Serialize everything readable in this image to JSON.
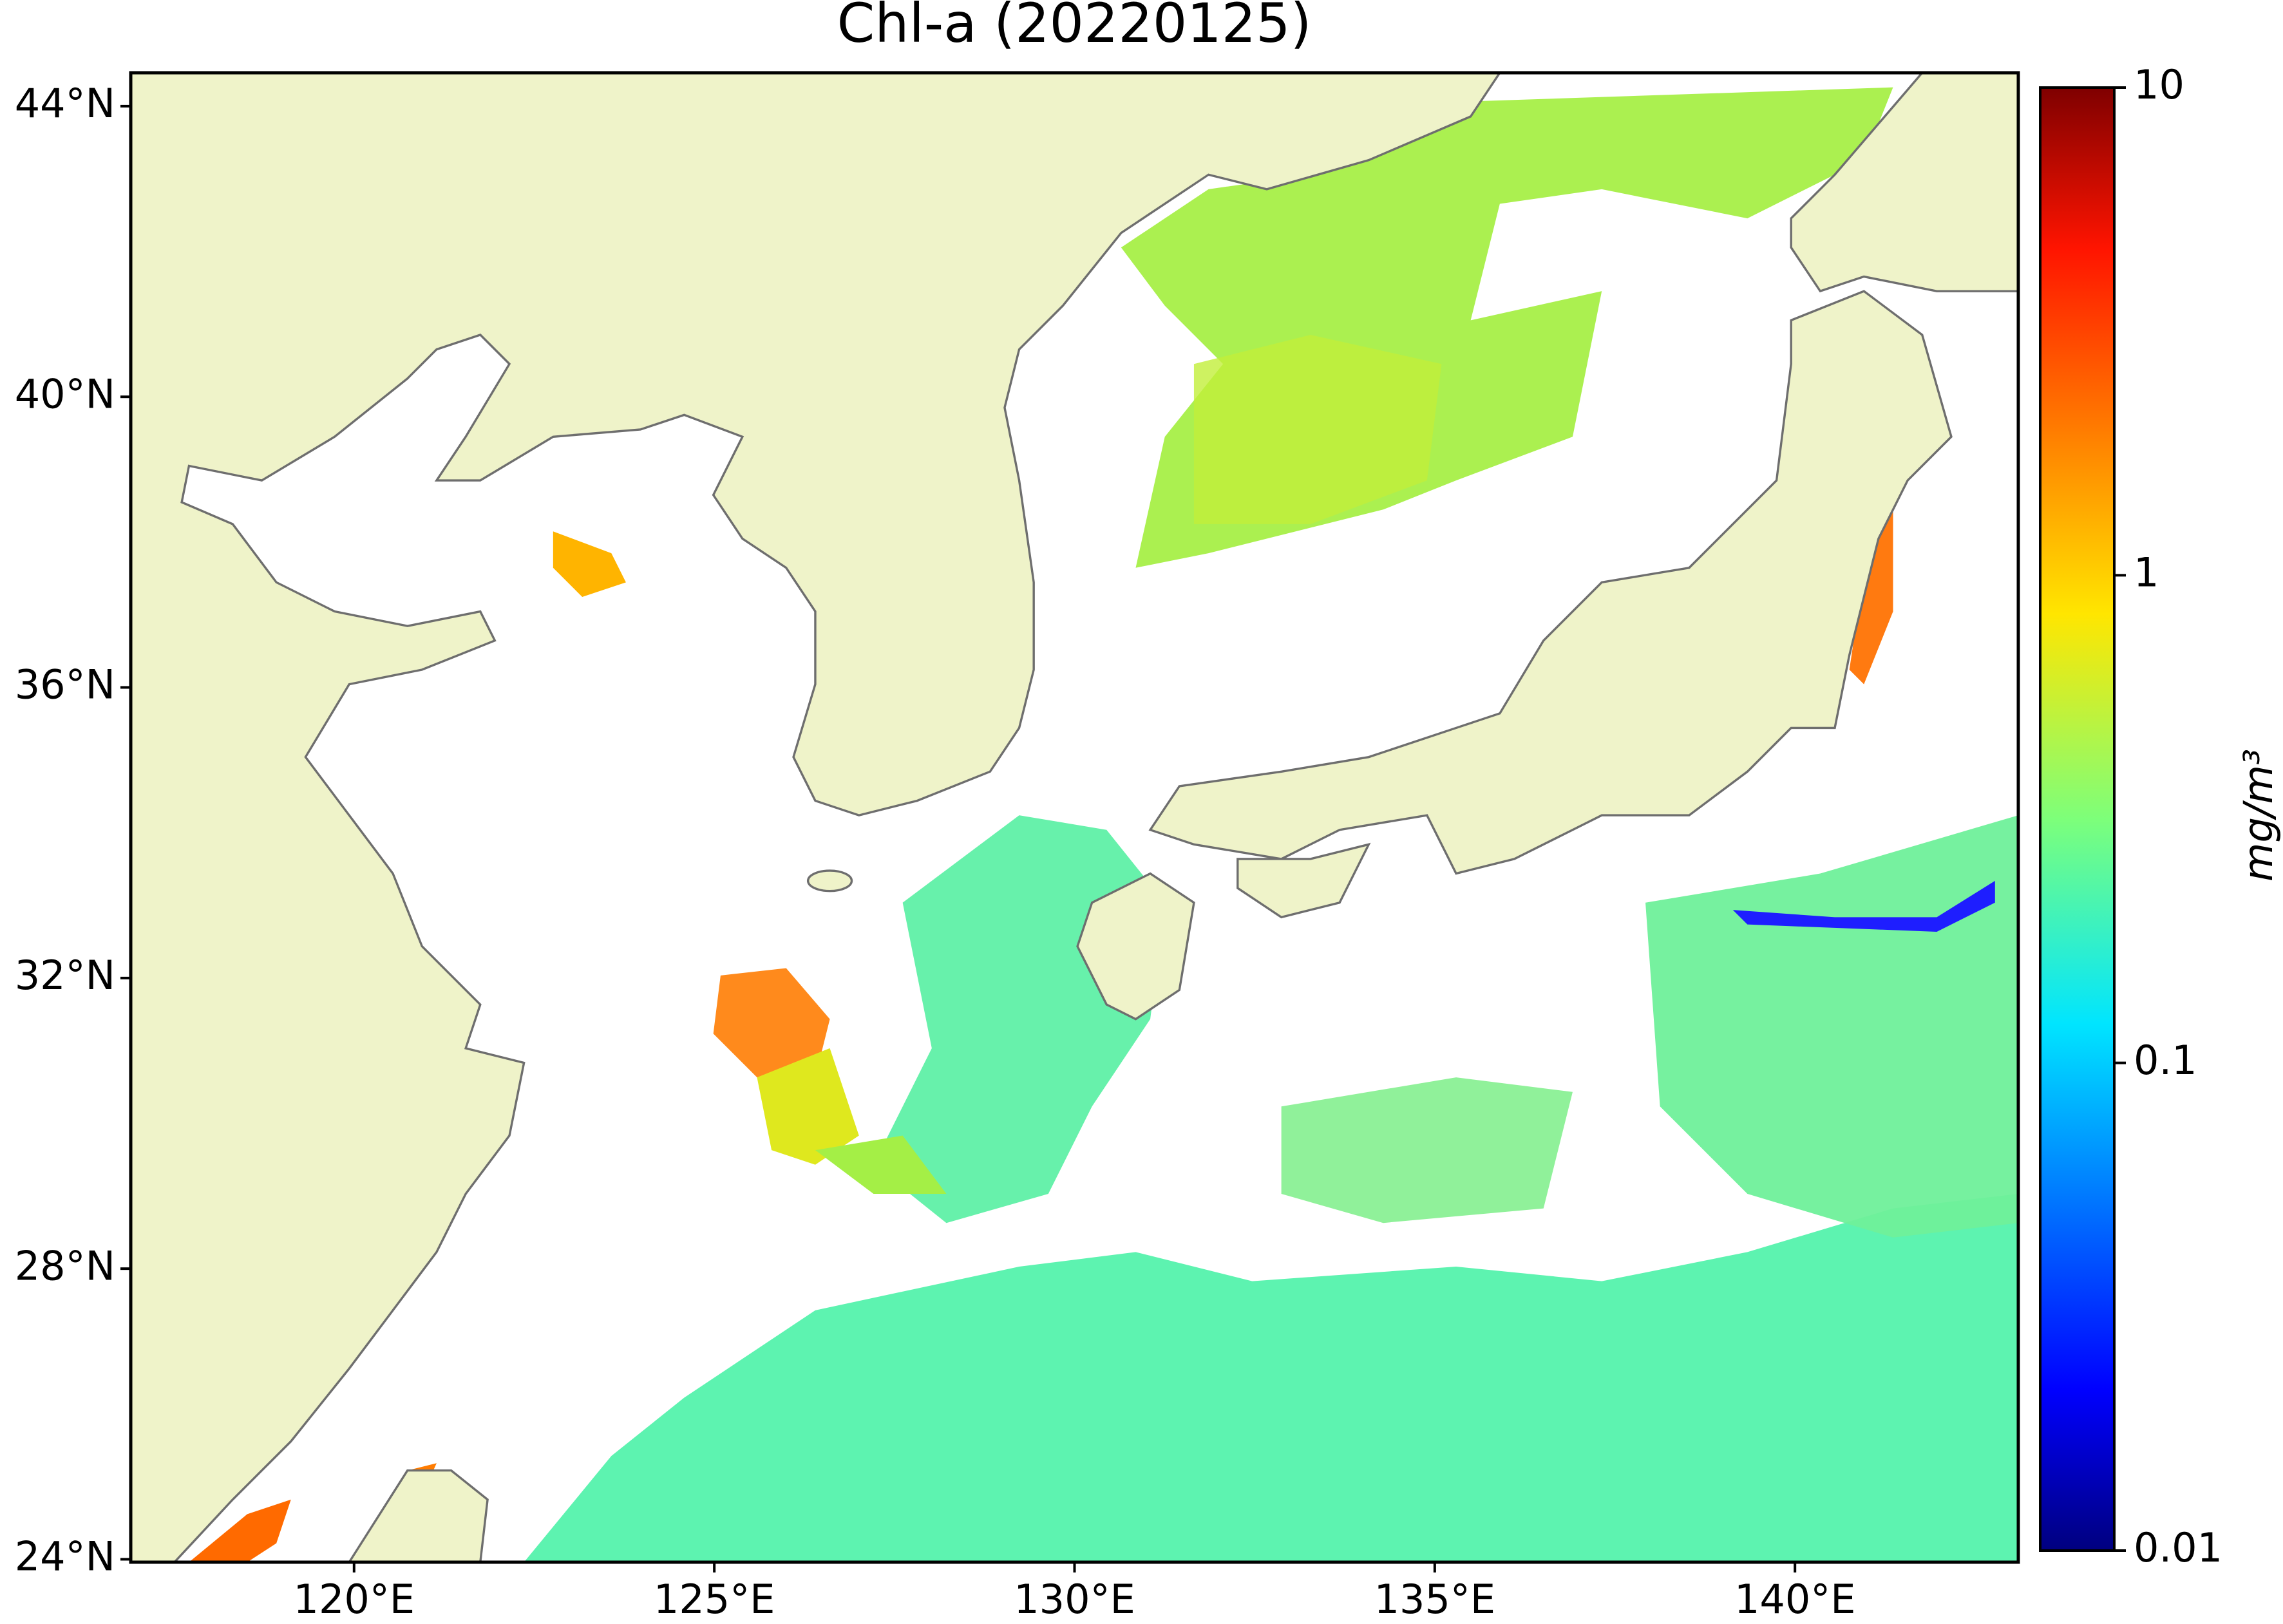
{
  "chart_data": {
    "type": "map",
    "title": "Chl-a (20220125)",
    "xlim": [
      116.9,
      143.1
    ],
    "ylim": [
      23.96,
      44.46
    ],
    "xticks": [
      {
        "value": 120,
        "label": "120°E"
      },
      {
        "value": 125,
        "label": "125°E"
      },
      {
        "value": 130,
        "label": "130°E"
      },
      {
        "value": 135,
        "label": "135°E"
      },
      {
        "value": 140,
        "label": "140°E"
      }
    ],
    "yticks": [
      {
        "value": 24,
        "label": "24°N"
      },
      {
        "value": 28,
        "label": "28°N"
      },
      {
        "value": 32,
        "label": "32°N"
      },
      {
        "value": 36,
        "label": "36°N"
      },
      {
        "value": 40,
        "label": "40°N"
      },
      {
        "value": 44,
        "label": "44°N"
      }
    ],
    "colorbar": {
      "label": "mg/m³",
      "scale": "log",
      "lim": [
        0.01,
        10
      ],
      "ticks": [
        0.01,
        0.1,
        1,
        10
      ]
    }
  }
}
